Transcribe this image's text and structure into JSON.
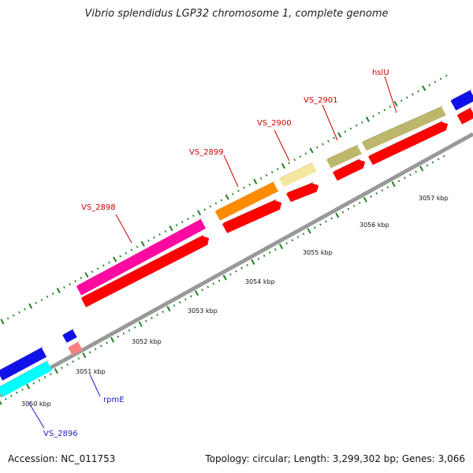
{
  "title": "Vibrio splendidus LGP32 chromosome 1, complete genome",
  "footer": {
    "accession": "Accession: NC_011753",
    "stats": "Topology: circular; Length: 3,299,302 bp; Genes: 3,066"
  },
  "colors": {
    "backbone": "#999999",
    "forward_cds": "#ff0000",
    "label_forward": "#cc0000",
    "label_reverse": "#1f1fbf",
    "tick": "#1f7f1f"
  },
  "position_labels": [
    "3050 kbp",
    "3051 kbp",
    "3052 kbp",
    "3053 kbp",
    "3054 kbp",
    "3055 kbp",
    "3056 kbp",
    "3057 kbp"
  ],
  "genes": [
    {
      "name": "VS_2896",
      "strand": "reverse",
      "color": "#00ffff"
    },
    {
      "name": "rpmE",
      "strand": "reverse",
      "color": "#ff8080"
    },
    {
      "name": "VS_2898",
      "strand": "forward",
      "color": "#ff0aa0"
    },
    {
      "name": "VS_2899",
      "strand": "forward",
      "color": "#ff8c00"
    },
    {
      "name": "VS_2900",
      "strand": "forward",
      "color": "#f5e6a0"
    },
    {
      "name": "VS_2901",
      "strand": "forward",
      "color": "#bdb76b"
    },
    {
      "name": "hslU",
      "strand": "forward",
      "color": "#bdb76b"
    }
  ]
}
